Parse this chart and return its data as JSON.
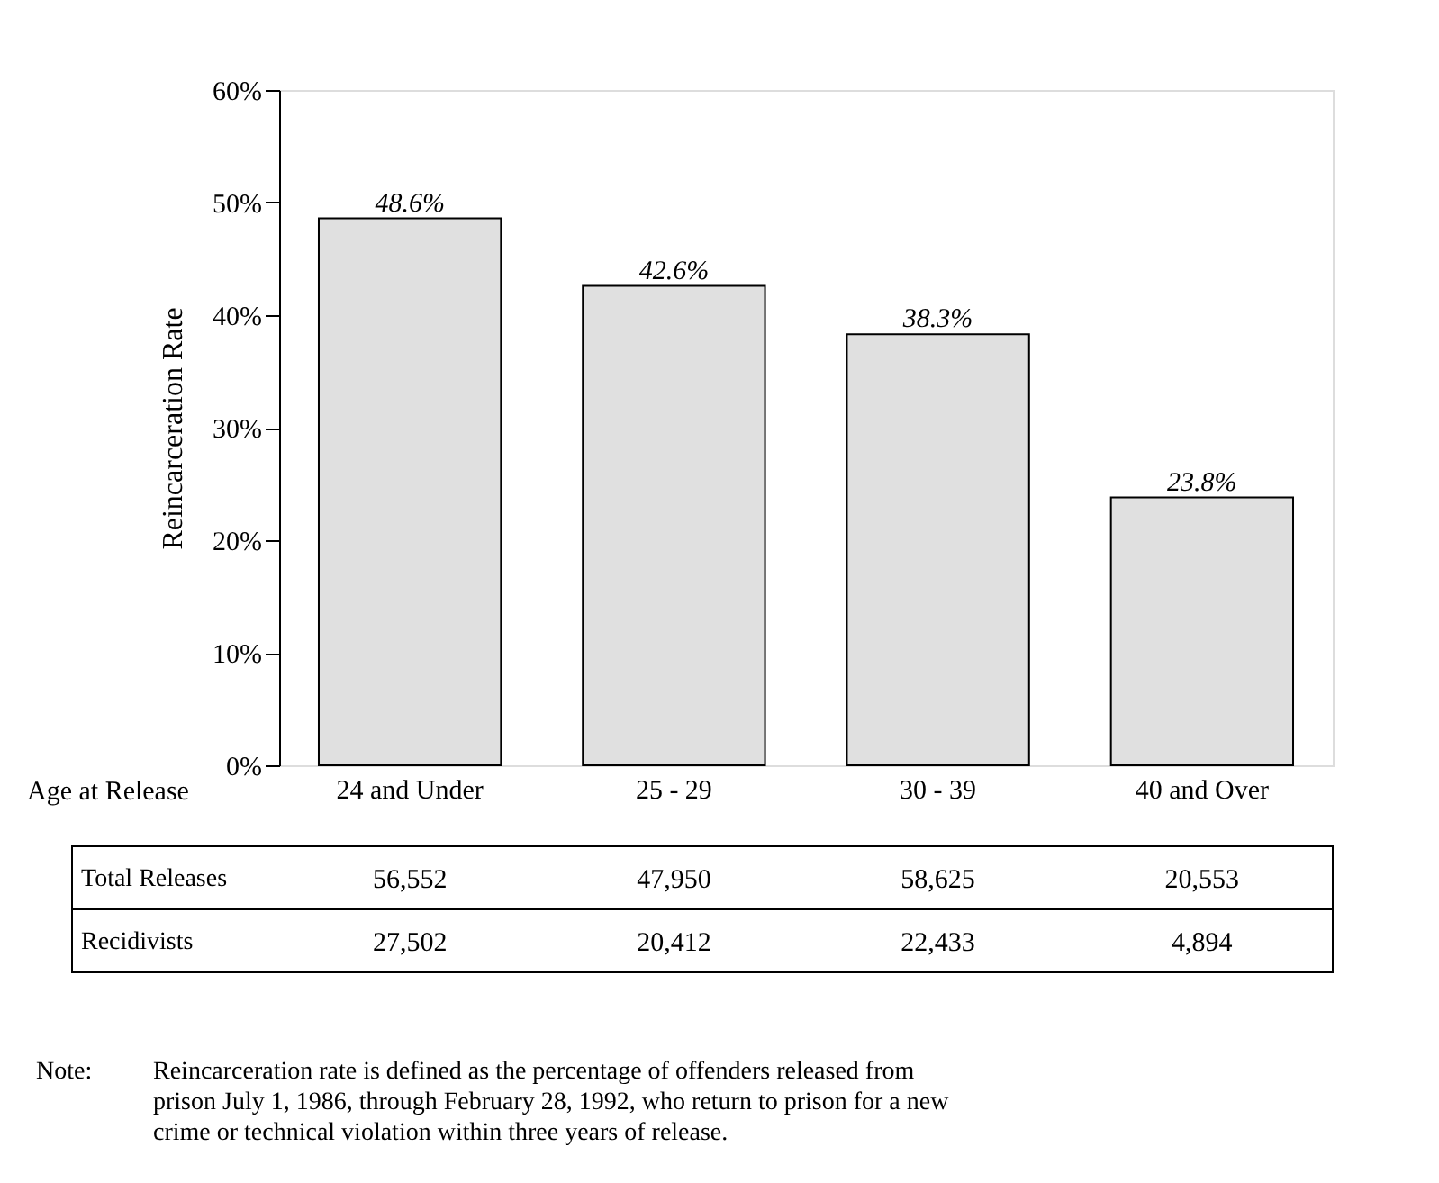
{
  "chart_data": {
    "type": "bar",
    "xlabel": "Age at Release",
    "ylabel": "Reincarceration Rate",
    "categories": [
      "24 and Under",
      "25 - 29",
      "30 - 39",
      "40 and Over"
    ],
    "values": [
      48.6,
      42.6,
      38.3,
      23.8
    ],
    "color": "#e0e0e0",
    "value_labels": [
      "48.6%",
      "42.6%",
      "38.3%",
      "23.8%"
    ],
    "ylim": [
      0,
      60
    ],
    "yticks": [
      {
        "value": 0,
        "label": "0%"
      },
      {
        "value": 10,
        "label": "10%"
      },
      {
        "value": 20,
        "label": "20%"
      },
      {
        "value": 30,
        "label": "30%"
      },
      {
        "value": 40,
        "label": "40%"
      },
      {
        "value": 50,
        "label": "50%"
      },
      {
        "value": 60,
        "label": "60%"
      }
    ],
    "grid": false,
    "annotations": [
      "Total Releases",
      "56,552",
      "47,950",
      "58,625",
      "20,553",
      "Recidivists",
      "27,502",
      "20,412",
      "22,433",
      "4,894",
      "Note:",
      "Reincarceration rate is defined as the percentage of offenders released from prison July 1, 1986, through February 28, 1992, who return to prison for a new crime or technical violation within three years of release."
    ]
  }
}
